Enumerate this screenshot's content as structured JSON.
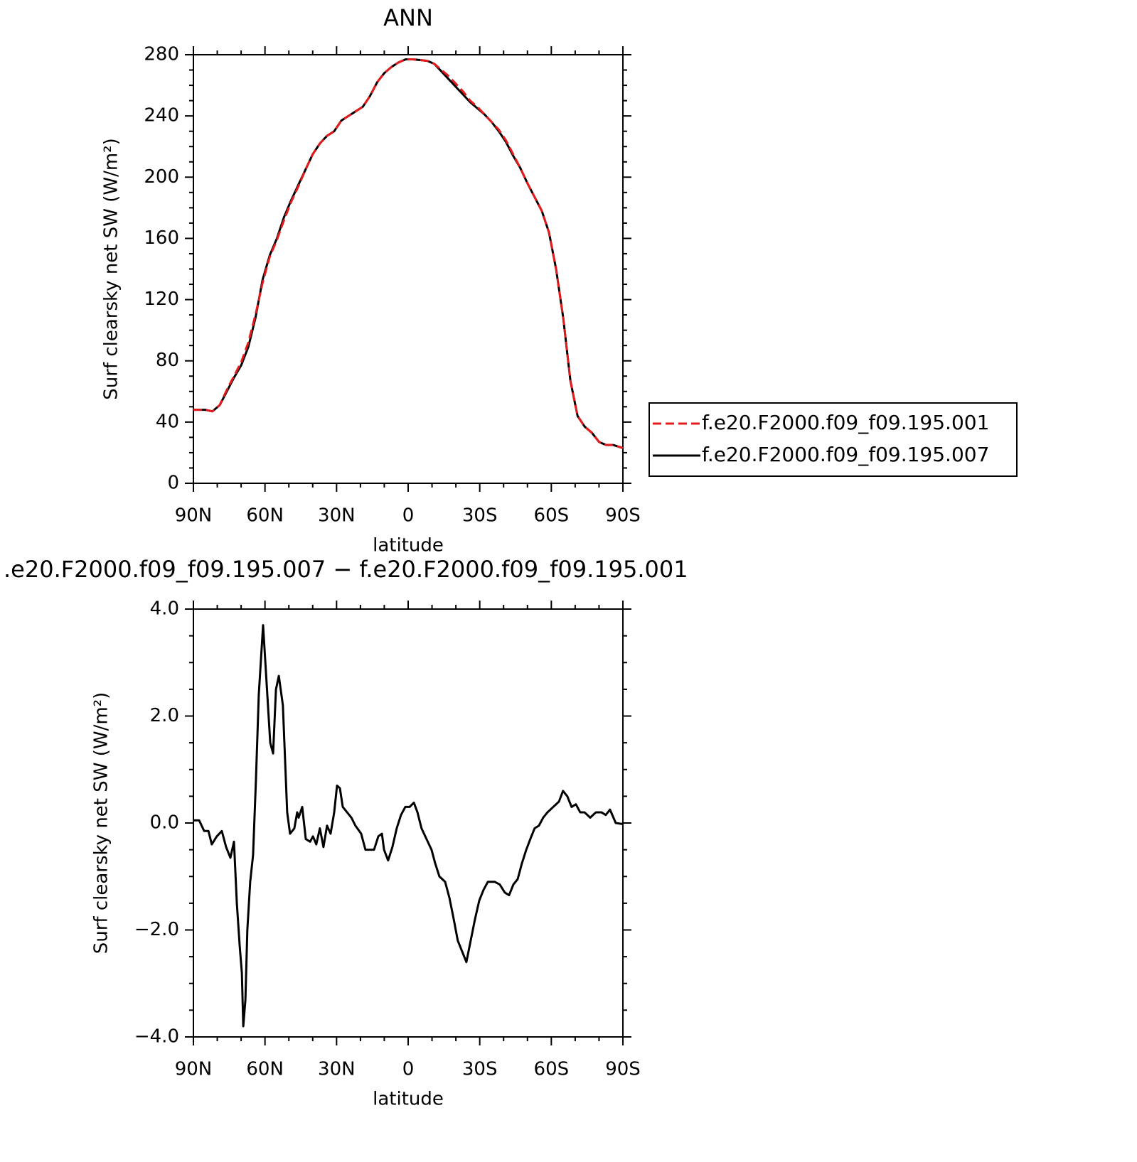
{
  "chart_data": [
    {
      "type": "line",
      "title": "ANN",
      "x_label": "latitude",
      "y_label": "Surf clearsky net SW (W/m²)",
      "xlim": [
        90,
        -90
      ],
      "xticks": [
        {
          "value": 90,
          "label": "90N"
        },
        {
          "value": 60,
          "label": "60N"
        },
        {
          "value": 30,
          "label": "30N"
        },
        0,
        {
          "value": -30,
          "label": "30S"
        },
        {
          "value": -60,
          "label": "60S"
        },
        {
          "value": -90,
          "label": "90S"
        }
      ],
      "ylim": [
        0,
        280
      ],
      "yticks": [
        0,
        40,
        80,
        120,
        160,
        200,
        240,
        280
      ],
      "legend": "right",
      "x": [
        90,
        85,
        82,
        79,
        76,
        73,
        70,
        67,
        64,
        61,
        58,
        55,
        52,
        49,
        46,
        43,
        40,
        37,
        34,
        31,
        28,
        25,
        22,
        19,
        16,
        13,
        10,
        7,
        4,
        1,
        -2,
        -5,
        -8,
        -11,
        -14,
        -17,
        -20,
        -23,
        -26,
        -29,
        -32,
        -35,
        -38,
        -41,
        -44,
        -47,
        -50,
        -53,
        -56,
        -59,
        -62,
        -65,
        -68,
        -71,
        -74,
        -77,
        -80,
        -83,
        -86,
        -90
      ],
      "series": [
        {
          "name": "f.e20.F2000.f09_f09.195.001",
          "color": "#e41a1c",
          "line_style": "dashed",
          "values": [
            48,
            48,
            47,
            51,
            61,
            70,
            79,
            92,
            110,
            131,
            148,
            159,
            172,
            184,
            194,
            205,
            215,
            222,
            227,
            230,
            237,
            240,
            243,
            246,
            253,
            262,
            268,
            272,
            275,
            277,
            277,
            276.5,
            276,
            274,
            270,
            266,
            261,
            256,
            250,
            246,
            241,
            236,
            231,
            224,
            215,
            206,
            196,
            187,
            178,
            164,
            140,
            108,
            67,
            44,
            37,
            33,
            27,
            25,
            25,
            23
          ]
        },
        {
          "name": "f.e20.F2000.f09_f09.195.007",
          "color": "#000000",
          "line_style": "solid",
          "values": [
            48,
            48,
            47,
            51,
            60,
            69,
            77,
            89,
            108,
            133,
            149,
            160,
            174,
            185,
            195,
            205,
            215,
            222,
            227,
            230,
            237,
            240,
            243,
            246,
            253,
            262,
            268,
            272,
            275,
            277,
            277,
            276.5,
            276,
            274,
            269,
            264,
            259,
            254,
            249,
            245,
            241,
            236,
            230,
            223,
            214,
            206,
            196,
            187,
            178,
            164,
            140,
            108,
            67,
            44,
            37,
            33,
            27,
            25,
            25,
            23
          ]
        }
      ]
    },
    {
      "type": "line",
      "title": ".e20.F2000.f09_f09.195.007 − f.e20.F2000.f09_f09.195.001",
      "x_label": "latitude",
      "y_label": "Surf clearsky net SW (W/m²)",
      "xlim": [
        90,
        -90
      ],
      "xticks": [
        {
          "value": 90,
          "label": "90N"
        },
        {
          "value": 60,
          "label": "60N"
        },
        {
          "value": 30,
          "label": "30N"
        },
        0,
        {
          "value": -30,
          "label": "30S"
        },
        {
          "value": -60,
          "label": "60S"
        },
        {
          "value": -90,
          "label": "90S"
        }
      ],
      "ylim": [
        -4,
        4
      ],
      "yticks": [
        {
          "value": -4,
          "label": "−4.0"
        },
        {
          "value": -2,
          "label": "−2.0"
        },
        {
          "value": 0,
          "label": "0.0"
        },
        {
          "value": 2,
          "label": "2.0"
        },
        {
          "value": 4,
          "label": "4.0"
        }
      ],
      "x": [
        90,
        87.6,
        85.5,
        83.7,
        82.3,
        80.2,
        78.1,
        76.3,
        74.5,
        73.0,
        71.8,
        70.6,
        69.7,
        69.1,
        68.2,
        67.4,
        66.2,
        65.0,
        63.8,
        62.6,
        60.8,
        59.3,
        57.8,
        56.6,
        55.4,
        54.2,
        52.5,
        50.7,
        49.5,
        47.7,
        46.5,
        45.9,
        44.4,
        42.9,
        41.1,
        39.9,
        38.5,
        37.0,
        35.5,
        34.0,
        32.5,
        31.0,
        29.8,
        28.6,
        27.4,
        25.6,
        23.8,
        22.1,
        19.7,
        17.9,
        16.1,
        14.3,
        12.5,
        11.0,
        10.1,
        8.4,
        6.6,
        4.8,
        3.0,
        1.2,
        -0.6,
        -2.4,
        -3.9,
        -5.6,
        -7.7,
        -9.8,
        -11.3,
        -13.1,
        -15.5,
        -17.3,
        -19.1,
        -20.8,
        -22.6,
        -24.4,
        -26.2,
        -28.0,
        -29.8,
        -31.6,
        -33.4,
        -36.3,
        -38.4,
        -40.5,
        -42.3,
        -44.1,
        -45.9,
        -47.7,
        -49.5,
        -51.2,
        -53.0,
        -54.8,
        -56.6,
        -58.4,
        -60.8,
        -63.2,
        -64.9,
        -66.7,
        -68.5,
        -70.3,
        -72.1,
        -73.9,
        -76.3,
        -78.7,
        -81.0,
        -82.8,
        -84.6,
        -87.0,
        -90
      ],
      "series": [
        {
          "color": "#000000",
          "line_style": "solid",
          "values": [
            0.05,
            0.05,
            -0.15,
            -0.15,
            -0.4,
            -0.25,
            -0.15,
            -0.45,
            -0.65,
            -0.35,
            -1.5,
            -2.3,
            -2.8,
            -3.8,
            -3.3,
            -2.0,
            -1.1,
            -0.6,
            0.8,
            2.4,
            3.7,
            2.6,
            1.5,
            1.3,
            2.5,
            2.75,
            2.2,
            0.2,
            -0.2,
            -0.1,
            0.2,
            0.1,
            0.3,
            -0.3,
            -0.35,
            -0.25,
            -0.4,
            -0.1,
            -0.45,
            -0.05,
            -0.2,
            0.2,
            0.7,
            0.65,
            0.3,
            0.2,
            0.1,
            -0.05,
            -0.2,
            -0.5,
            -0.5,
            -0.5,
            -0.25,
            -0.2,
            -0.5,
            -0.7,
            -0.45,
            -0.1,
            0.15,
            0.3,
            0.3,
            0.38,
            0.2,
            -0.1,
            -0.3,
            -0.5,
            -0.75,
            -1.0,
            -1.1,
            -1.4,
            -1.8,
            -2.2,
            -2.4,
            -2.6,
            -2.2,
            -1.8,
            -1.45,
            -1.25,
            -1.1,
            -1.1,
            -1.15,
            -1.3,
            -1.35,
            -1.15,
            -1.05,
            -0.75,
            -0.5,
            -0.3,
            -0.1,
            -0.05,
            0.1,
            0.2,
            0.3,
            0.4,
            0.6,
            0.5,
            0.3,
            0.35,
            0.2,
            0.2,
            0.1,
            0.2,
            0.2,
            0.15,
            0.25,
            0.0,
            -0.02
          ]
        }
      ]
    }
  ]
}
